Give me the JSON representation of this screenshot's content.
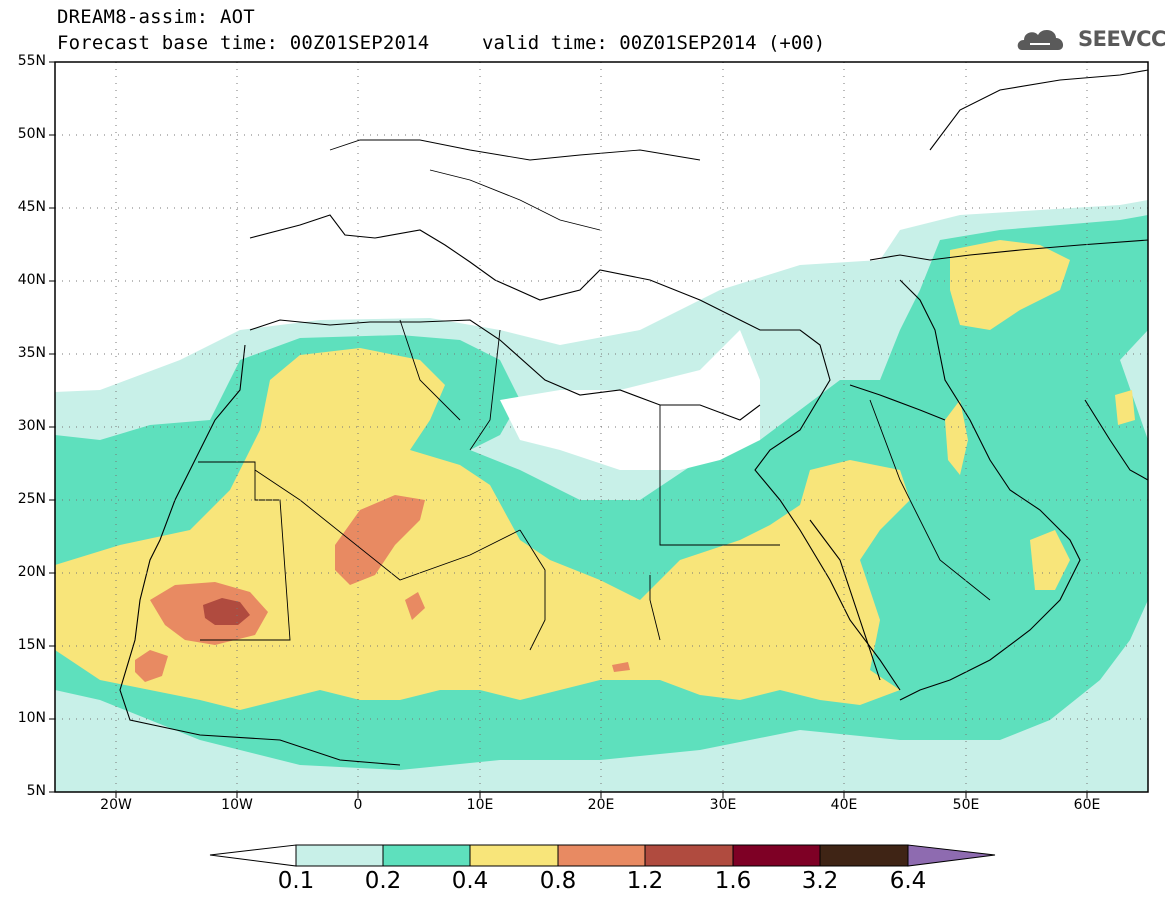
{
  "header": {
    "model_line": "DREAM8-assim: AOT",
    "base_time_line": "Forecast base time: 00Z01SEP2014",
    "valid_time_line": "valid time: 00Z01SEP2014 (+00)"
  },
  "logo": {
    "text": "SEEVCCC",
    "icon": "cloud-logo-icon"
  },
  "map": {
    "projection": "lat-lon",
    "lon_range": [
      -25,
      65
    ],
    "lat_range": [
      5,
      55
    ],
    "lat_labels": [
      "55N",
      "50N",
      "45N",
      "40N",
      "35N",
      "30N",
      "25N",
      "20N",
      "15N",
      "10N",
      "5N"
    ],
    "lon_labels": [
      "20W",
      "10W",
      "0",
      "10E",
      "20E",
      "30E",
      "40E",
      "50E",
      "60E"
    ],
    "field": "Aerosol optical thickness (dust)"
  },
  "colorbar": {
    "levels": [
      "0.1",
      "0.2",
      "0.4",
      "0.8",
      "1.2",
      "1.6",
      "3.2",
      "6.4"
    ],
    "colors": [
      "#ffffff",
      "#c8f0e8",
      "#5ee0bd",
      "#f8e57a",
      "#e88a62",
      "#b04b3f",
      "#7e0025",
      "#3f2415",
      "#8e6bb0"
    ]
  }
}
